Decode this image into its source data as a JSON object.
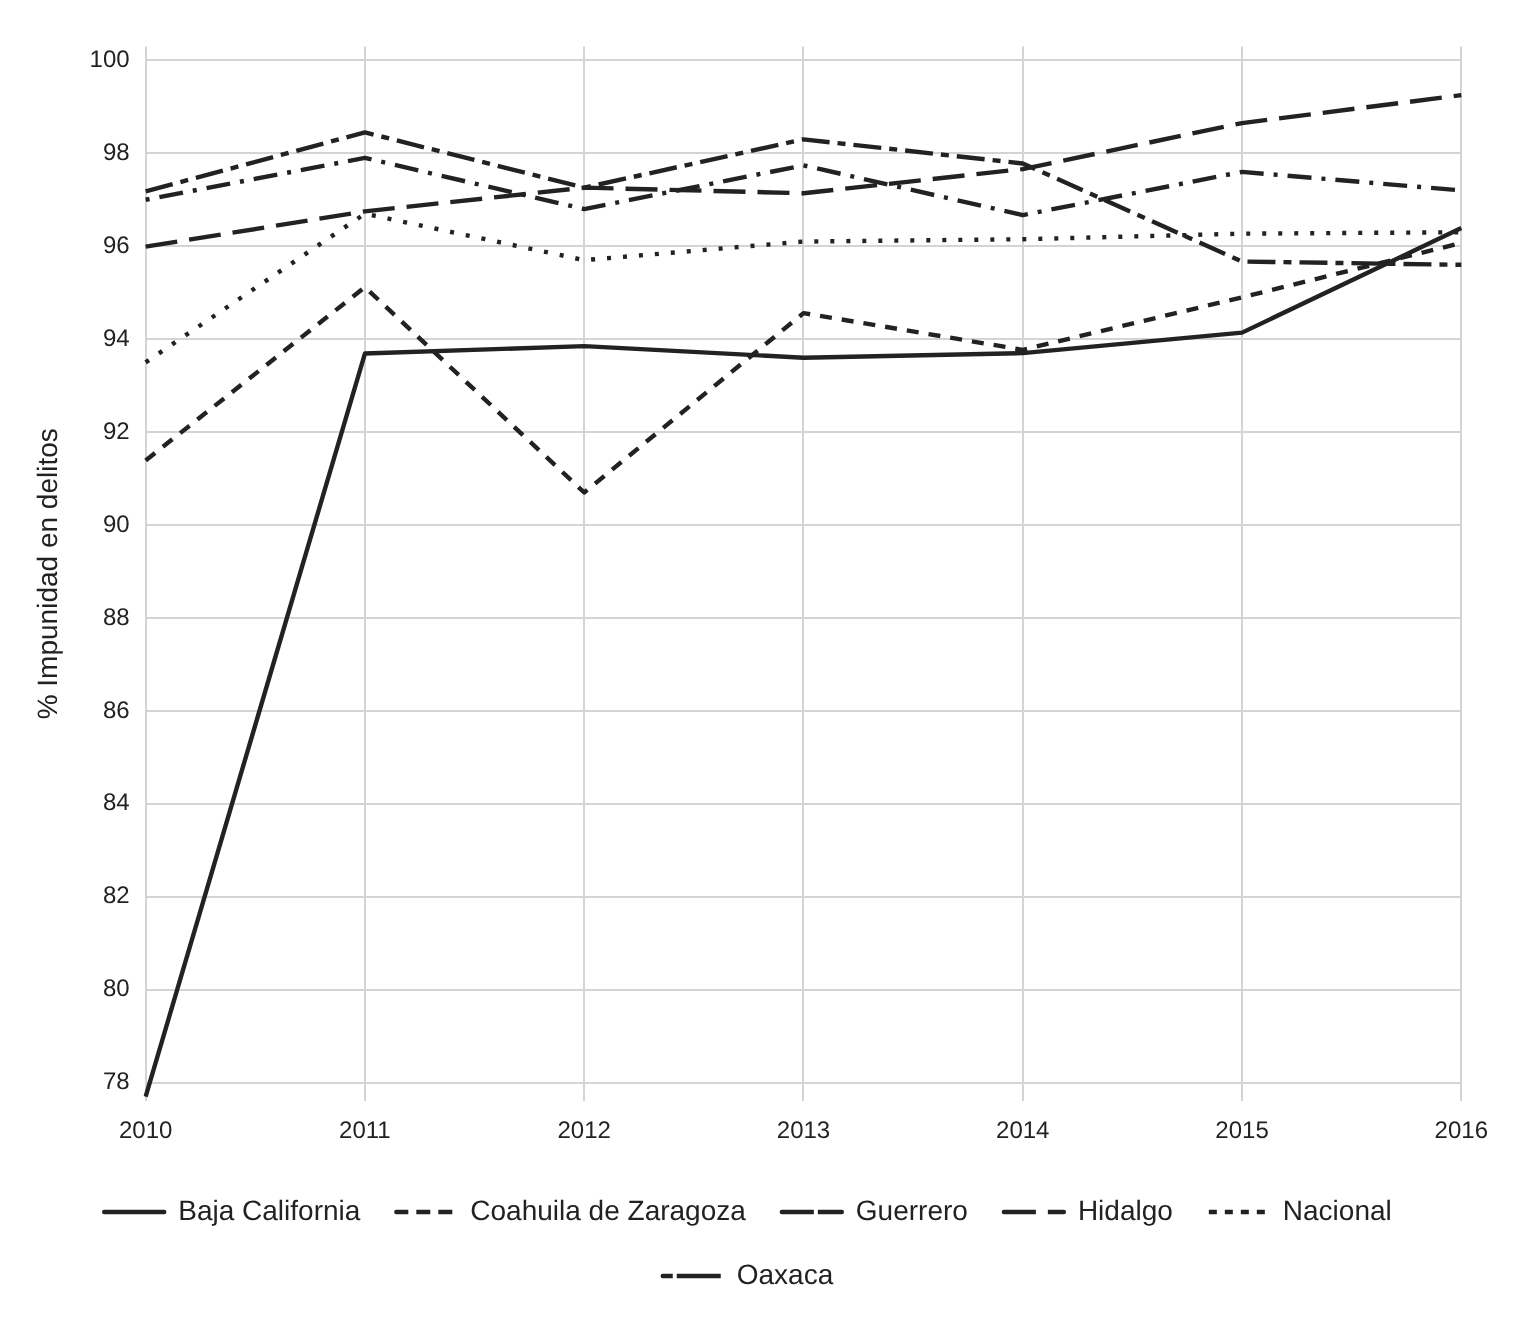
{
  "chart_data": {
    "type": "line",
    "ylabel": "% Impunidad en delitos",
    "categories": [
      "2010",
      "2011",
      "2012",
      "2013",
      "2014",
      "2015",
      "2016"
    ],
    "series": [
      {
        "name": "Baja California",
        "color": "#222222",
        "line_style": "solid",
        "values": [
          77.7,
          93.69,
          93.85,
          93.6,
          93.7,
          94.14,
          96.39
        ]
      },
      {
        "name": "Coahuila de Zaragoza",
        "color": "#222222",
        "line_style": "dashed",
        "values": [
          91.39,
          95.12,
          90.7,
          94.56,
          93.77,
          94.9,
          96.07
        ]
      },
      {
        "name": "Guerrero",
        "color": "#222222",
        "line_style": "dashed",
        "values": [
          97.18,
          98.45,
          97.26,
          98.3,
          97.78,
          95.67,
          95.6
        ]
      },
      {
        "name": "Hidalgo",
        "color": "#222222",
        "line_style": "dashed",
        "values": [
          95.99,
          96.75,
          97.26,
          97.14,
          97.66,
          98.65,
          99.25
        ]
      },
      {
        "name": "Nacional",
        "color": "#222222",
        "line_style": "dotted",
        "values": [
          93.5,
          96.7,
          95.7,
          96.1,
          96.15,
          96.27,
          96.3
        ]
      },
      {
        "name": "Oaxaca",
        "color": "#222222",
        "line_style": "dashed",
        "values": [
          97.0,
          97.9,
          96.8,
          97.74,
          96.67,
          97.6,
          97.2
        ]
      }
    ],
    "ylim": [
      77.6,
      100.3
    ],
    "yticks": [
      78,
      80,
      82,
      84,
      86,
      88,
      90,
      92,
      94,
      96,
      98,
      100
    ],
    "grid": true,
    "legend": "bottom",
    "marker": "none"
  }
}
